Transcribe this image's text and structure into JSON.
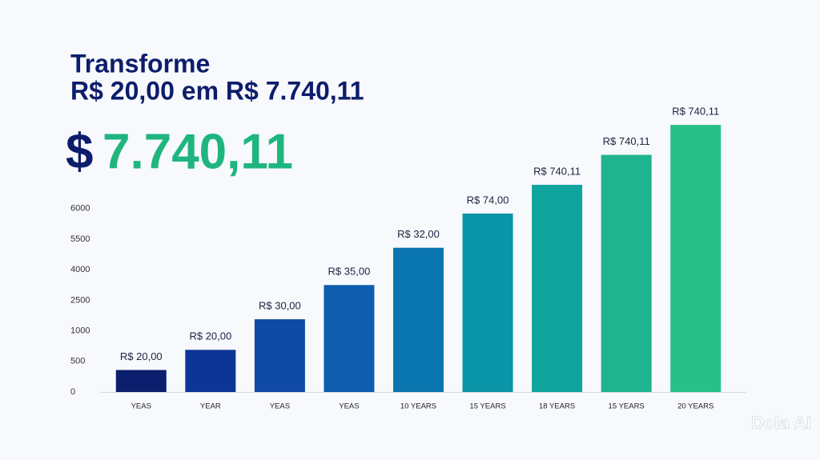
{
  "chart_data": {
    "type": "bar",
    "title": [
      "Transforme",
      "R$ 20,00 em R$ 7.740,11"
    ],
    "headline": {
      "symbol": "$",
      "amount": "7.740,11"
    },
    "categories": [
      "YEAS",
      "YEAR",
      "YEAS",
      "YEAS",
      "10 YEARS",
      "15 YEARS",
      "18 YEARS",
      "15 YEARS",
      "20 YEARS"
    ],
    "values": [
      360,
      690,
      1570,
      3250,
      5080,
      5920,
      6390,
      6880,
      7370
    ],
    "bar_labels": [
      "R$ 20,00",
      "R$ 20,00",
      "R$ 30,00",
      "R$ 35,00",
      "R$ 32,00",
      "R$ 74,00",
      "R$ 740,11",
      "R$ 740,11",
      "R$ 740,11"
    ],
    "colors": [
      "#0b1f6e",
      "#0d3596",
      "#0f4aa6",
      "#0e5daf",
      "#0a76b0",
      "#0a95a8",
      "#10a49e",
      "#1eb48e",
      "#27c08a"
    ],
    "ylim": [
      0,
      7500
    ],
    "yticks": [
      0,
      500,
      1000,
      2500,
      4000,
      5500,
      6000
    ],
    "watermark": "Dola AI"
  }
}
